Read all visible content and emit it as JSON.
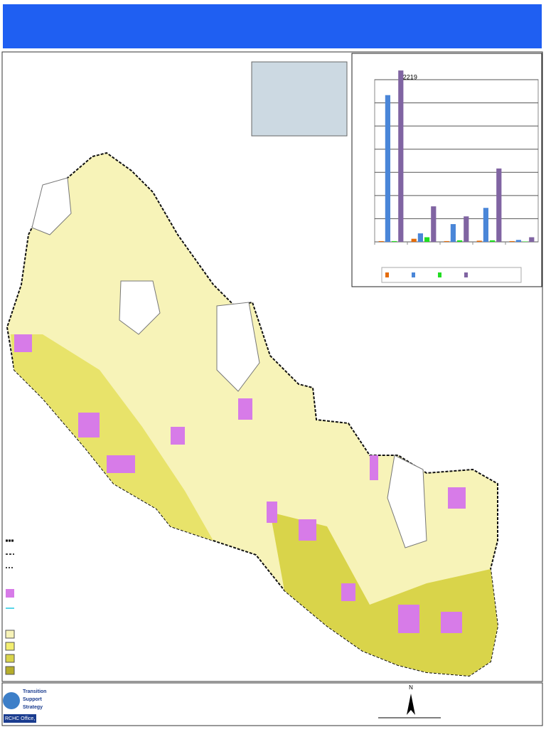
{
  "chart_data": {
    "type": "bar",
    "categories": [
      null,
      null,
      null,
      null,
      null
    ],
    "series": [
      {
        "color": "#e46c0a",
        "values": [
          10,
          40,
          10,
          15,
          10
        ]
      },
      {
        "color": "#4a86d8",
        "values": [
          1900,
          110,
          230,
          440,
          25
        ]
      },
      {
        "color": "#22dd22",
        "values": [
          10,
          60,
          20,
          20,
          5
        ]
      },
      {
        "color": "#8064a2",
        "values": [
          2219,
          460,
          330,
          950,
          60
        ]
      }
    ],
    "ylim": [
      0,
      2100
    ],
    "yticks": [
      0,
      300,
      600,
      900,
      1200,
      1500,
      1800,
      2100
    ],
    "grid": true
  },
  "north_label": "N",
  "logo": {
    "lines": [
      "Transition",
      "Support",
      "Strategy"
    ],
    "office": "RCHC Office, Nepal"
  }
}
